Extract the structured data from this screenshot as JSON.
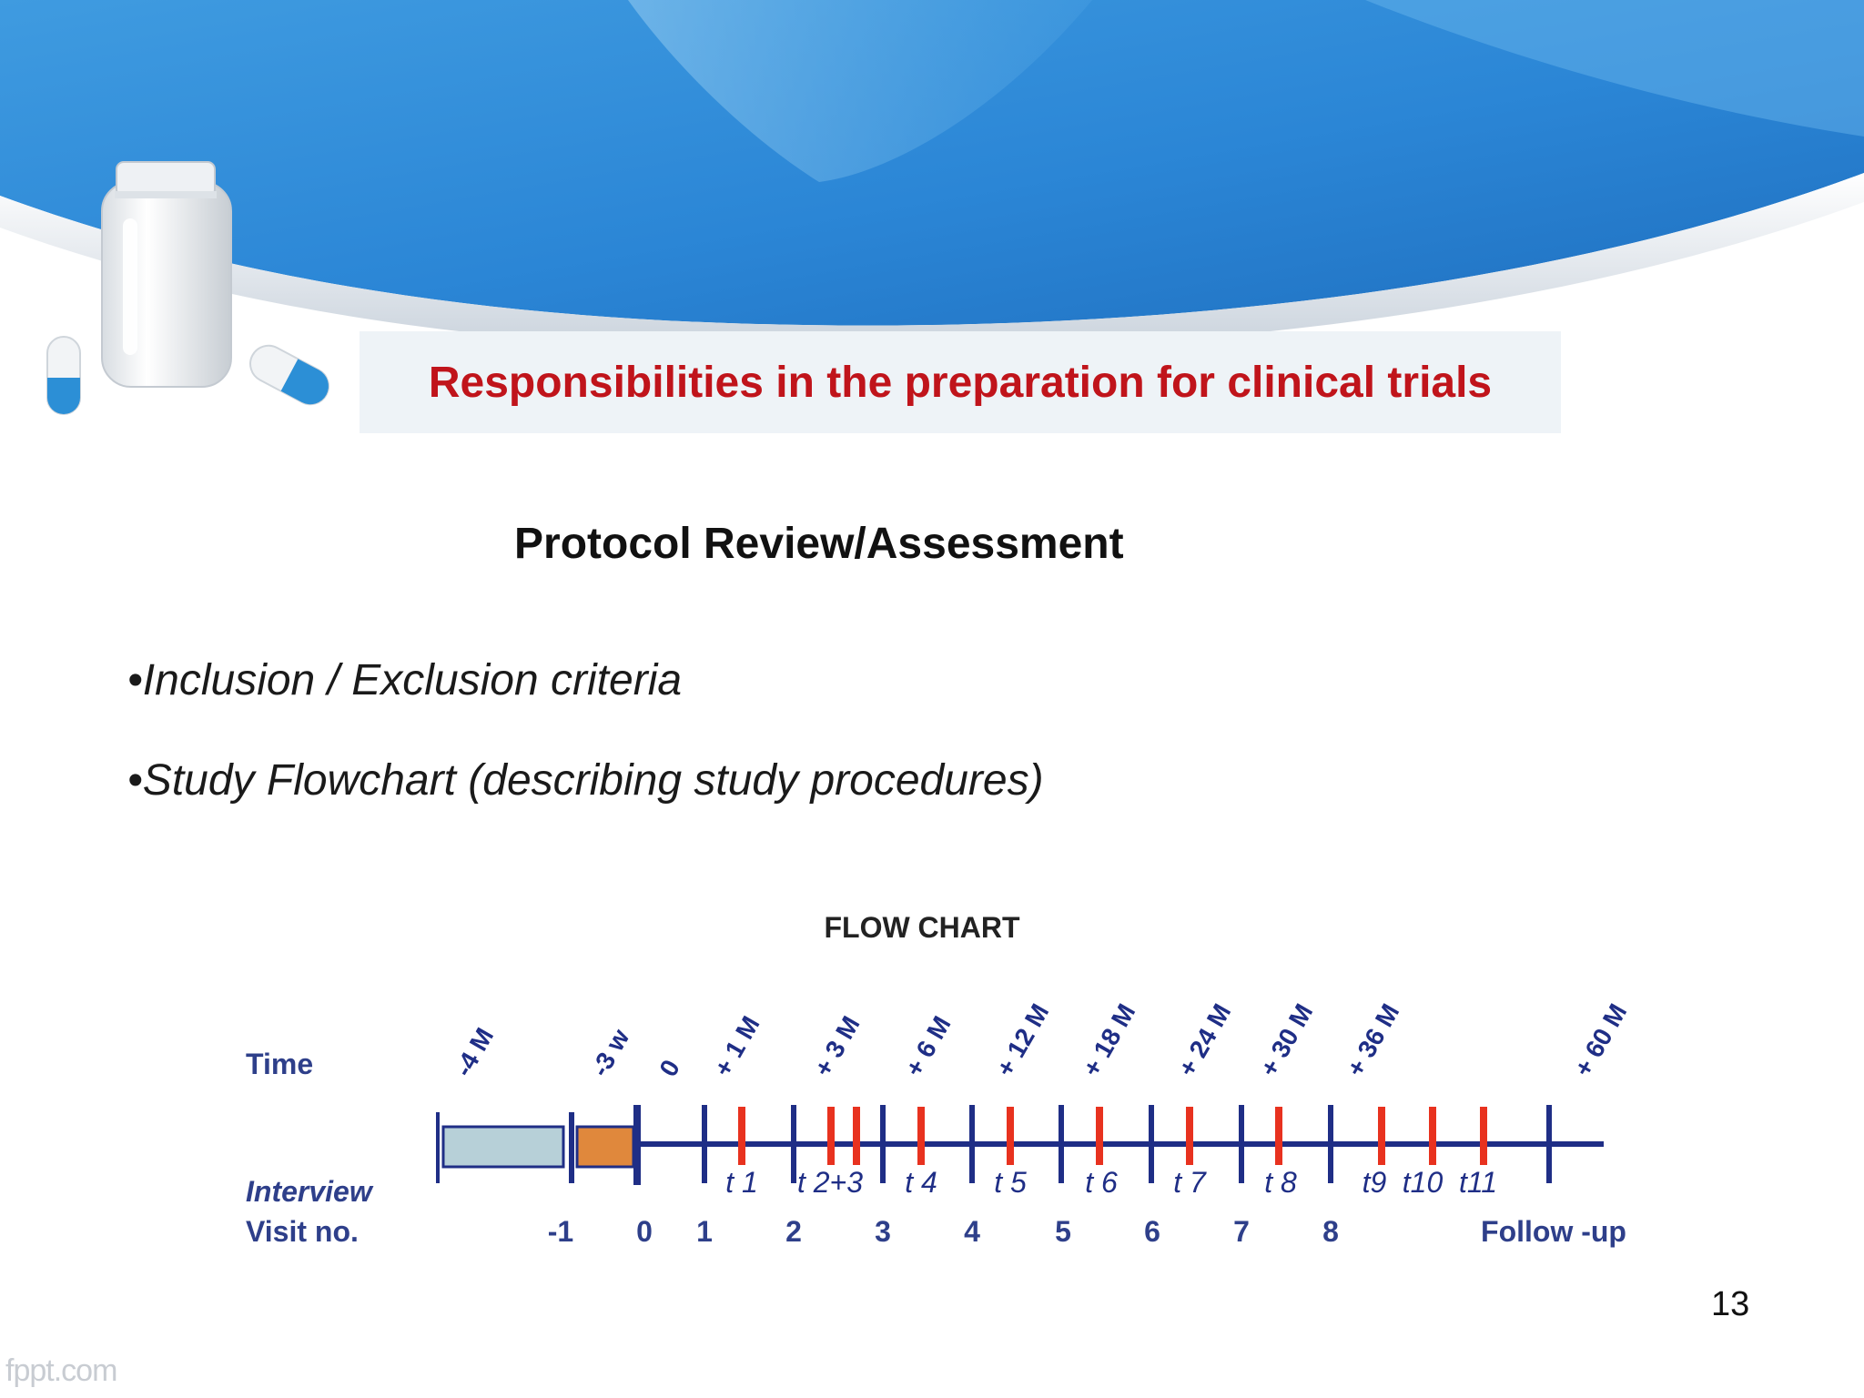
{
  "slide": {
    "title": "Responsibilities in the preparation for clinical trials",
    "subtitle": "Protocol Review/Assessment",
    "bullets": [
      "•Inclusion / Exclusion criteria",
      "•Study Flowchart (describing study procedures)"
    ],
    "page_number": "13",
    "footer_logo": "fppt.com"
  },
  "flowchart": {
    "title": "FLOW CHART",
    "row_labels": {
      "time": "Time",
      "interview": "Interview",
      "visit": "Visit no."
    },
    "time_labels": [
      "-4 M",
      "-3 w",
      "0",
      "+ 1 M",
      "+ 3 M",
      "+ 6 M",
      "+ 12 M",
      "+ 18 M",
      "+ 24 M",
      "+ 30 M",
      "+ 36 M",
      "+ 60 M"
    ],
    "interview_labels": [
      "t 1",
      "t 2+3",
      "t 4",
      "t 5",
      "t 6",
      "t 7",
      "t 8",
      "t9",
      "t10",
      "t11"
    ],
    "visit_labels": [
      "-1",
      "0",
      "1",
      "2",
      "3",
      "4",
      "5",
      "6",
      "7",
      "8",
      "Follow -up"
    ],
    "colors": {
      "timeline": "#1f2e86",
      "markers": "#e8321f",
      "screening_box": "#b7d0d8",
      "run_in_box": "#e0883c",
      "labels": "#1f2e86",
      "row_labels": "#2e3f8a"
    }
  },
  "theme": {
    "title_color": "#c0141b",
    "header_blue": "#2b86d6"
  }
}
